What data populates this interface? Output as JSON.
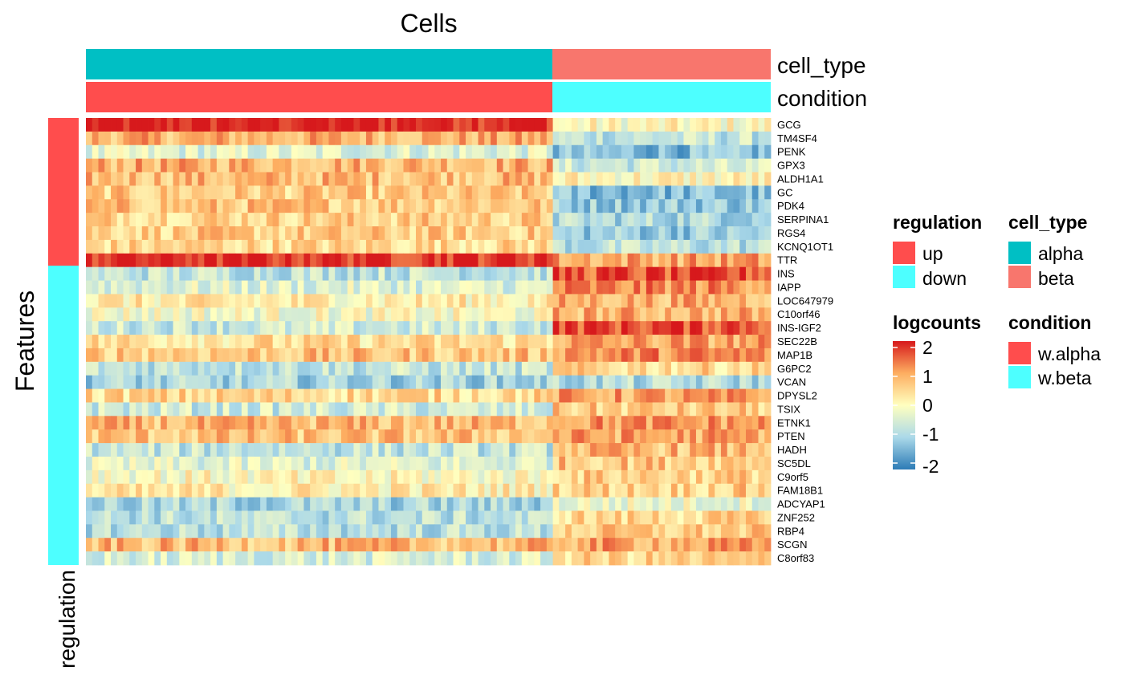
{
  "chart_data": {
    "type": "heatmap",
    "title": "Cells",
    "ylabel": "Features",
    "row_annotation_label": "regulation",
    "column_annotations": [
      {
        "name": "cell_type",
        "label": "cell_type"
      },
      {
        "name": "condition",
        "label": "condition"
      }
    ],
    "n_cells": 110,
    "n_alpha_cells": 75,
    "features": [
      {
        "name": "GCG",
        "regulation": "up",
        "alpha": 2.0,
        "beta": 0.0
      },
      {
        "name": "TM4SF4",
        "regulation": "up",
        "alpha": 0.9,
        "beta": -0.7
      },
      {
        "name": "PENK",
        "regulation": "up",
        "alpha": -0.4,
        "beta": -1.3
      },
      {
        "name": "GPX3",
        "regulation": "up",
        "alpha": 0.9,
        "beta": -0.6
      },
      {
        "name": "ALDH1A1",
        "regulation": "up",
        "alpha": 0.8,
        "beta": 0.1
      },
      {
        "name": "GC",
        "regulation": "up",
        "alpha": 0.6,
        "beta": -1.3
      },
      {
        "name": "PDK4",
        "regulation": "up",
        "alpha": 0.7,
        "beta": -1.1
      },
      {
        "name": "SERPINA1",
        "regulation": "up",
        "alpha": 0.6,
        "beta": -0.9
      },
      {
        "name": "RGS4",
        "regulation": "up",
        "alpha": 0.6,
        "beta": -1.1
      },
      {
        "name": "KCNQ1OT1",
        "regulation": "up",
        "alpha": 0.5,
        "beta": -0.8
      },
      {
        "name": "TTR",
        "regulation": "up",
        "alpha": 1.9,
        "beta": 1.0
      },
      {
        "name": "INS",
        "regulation": "down",
        "alpha": -0.7,
        "beta": 1.6
      },
      {
        "name": "IAPP",
        "regulation": "down",
        "alpha": -0.4,
        "beta": 1.2
      },
      {
        "name": "LOC647979",
        "regulation": "down",
        "alpha": 0.2,
        "beta": 0.9
      },
      {
        "name": "C10orf46",
        "regulation": "down",
        "alpha": -0.1,
        "beta": 0.9
      },
      {
        "name": "INS-IGF2",
        "regulation": "down",
        "alpha": -0.6,
        "beta": 1.7
      },
      {
        "name": "SEC22B",
        "regulation": "down",
        "alpha": 0.4,
        "beta": 1.0
      },
      {
        "name": "MAP1B",
        "regulation": "down",
        "alpha": 0.7,
        "beta": 1.2
      },
      {
        "name": "G6PC2",
        "regulation": "down",
        "alpha": -0.7,
        "beta": 0.5
      },
      {
        "name": "VCAN",
        "regulation": "down",
        "alpha": -1.0,
        "beta": -0.9
      },
      {
        "name": "DPYSL2",
        "regulation": "down",
        "alpha": 0.5,
        "beta": 1.0
      },
      {
        "name": "TSIX",
        "regulation": "down",
        "alpha": -0.6,
        "beta": 0.6
      },
      {
        "name": "ETNK1",
        "regulation": "down",
        "alpha": 0.8,
        "beta": 1.1
      },
      {
        "name": "PTEN",
        "regulation": "down",
        "alpha": 0.7,
        "beta": 1.0
      },
      {
        "name": "HADH",
        "regulation": "down",
        "alpha": -0.7,
        "beta": 0.8
      },
      {
        "name": "SC5DL",
        "regulation": "down",
        "alpha": -0.4,
        "beta": 0.7
      },
      {
        "name": "C9orf5",
        "regulation": "down",
        "alpha": 0.0,
        "beta": 0.6
      },
      {
        "name": "FAM18B1",
        "regulation": "down",
        "alpha": 0.2,
        "beta": 0.6
      },
      {
        "name": "ADCYAP1",
        "regulation": "down",
        "alpha": -1.0,
        "beta": -0.2
      },
      {
        "name": "ZNF252",
        "regulation": "down",
        "alpha": -0.8,
        "beta": 0.5
      },
      {
        "name": "RBP4",
        "regulation": "down",
        "alpha": -0.8,
        "beta": 0.6
      },
      {
        "name": "SCGN",
        "regulation": "down",
        "alpha": 0.8,
        "beta": 1.0
      },
      {
        "name": "C8orf83",
        "regulation": "down",
        "alpha": -0.5,
        "beta": 0.5
      }
    ],
    "legends": {
      "regulation": {
        "title": "regulation",
        "items": [
          {
            "label": "up",
            "color": "#FF4D4D"
          },
          {
            "label": "down",
            "color": "#4DFFFF"
          }
        ]
      },
      "cell_type": {
        "title": "cell_type",
        "items": [
          {
            "label": "alpha",
            "color": "#00BFC4"
          },
          {
            "label": "beta",
            "color": "#F8766D"
          }
        ]
      },
      "logcounts": {
        "title": "logcounts",
        "ticks": [
          "2",
          "1",
          "0",
          "-1",
          "-2"
        ]
      },
      "condition": {
        "title": "condition",
        "items": [
          {
            "label": "w.alpha",
            "color": "#FF4D4D"
          },
          {
            "label": "w.beta",
            "color": "#4DFFFF"
          }
        ]
      }
    },
    "colorscale": [
      "#2C7BB6",
      "#ABD9E9",
      "#FFFFBF",
      "#FDAE61",
      "#D7191C"
    ],
    "value_range": [
      -2,
      2
    ]
  }
}
